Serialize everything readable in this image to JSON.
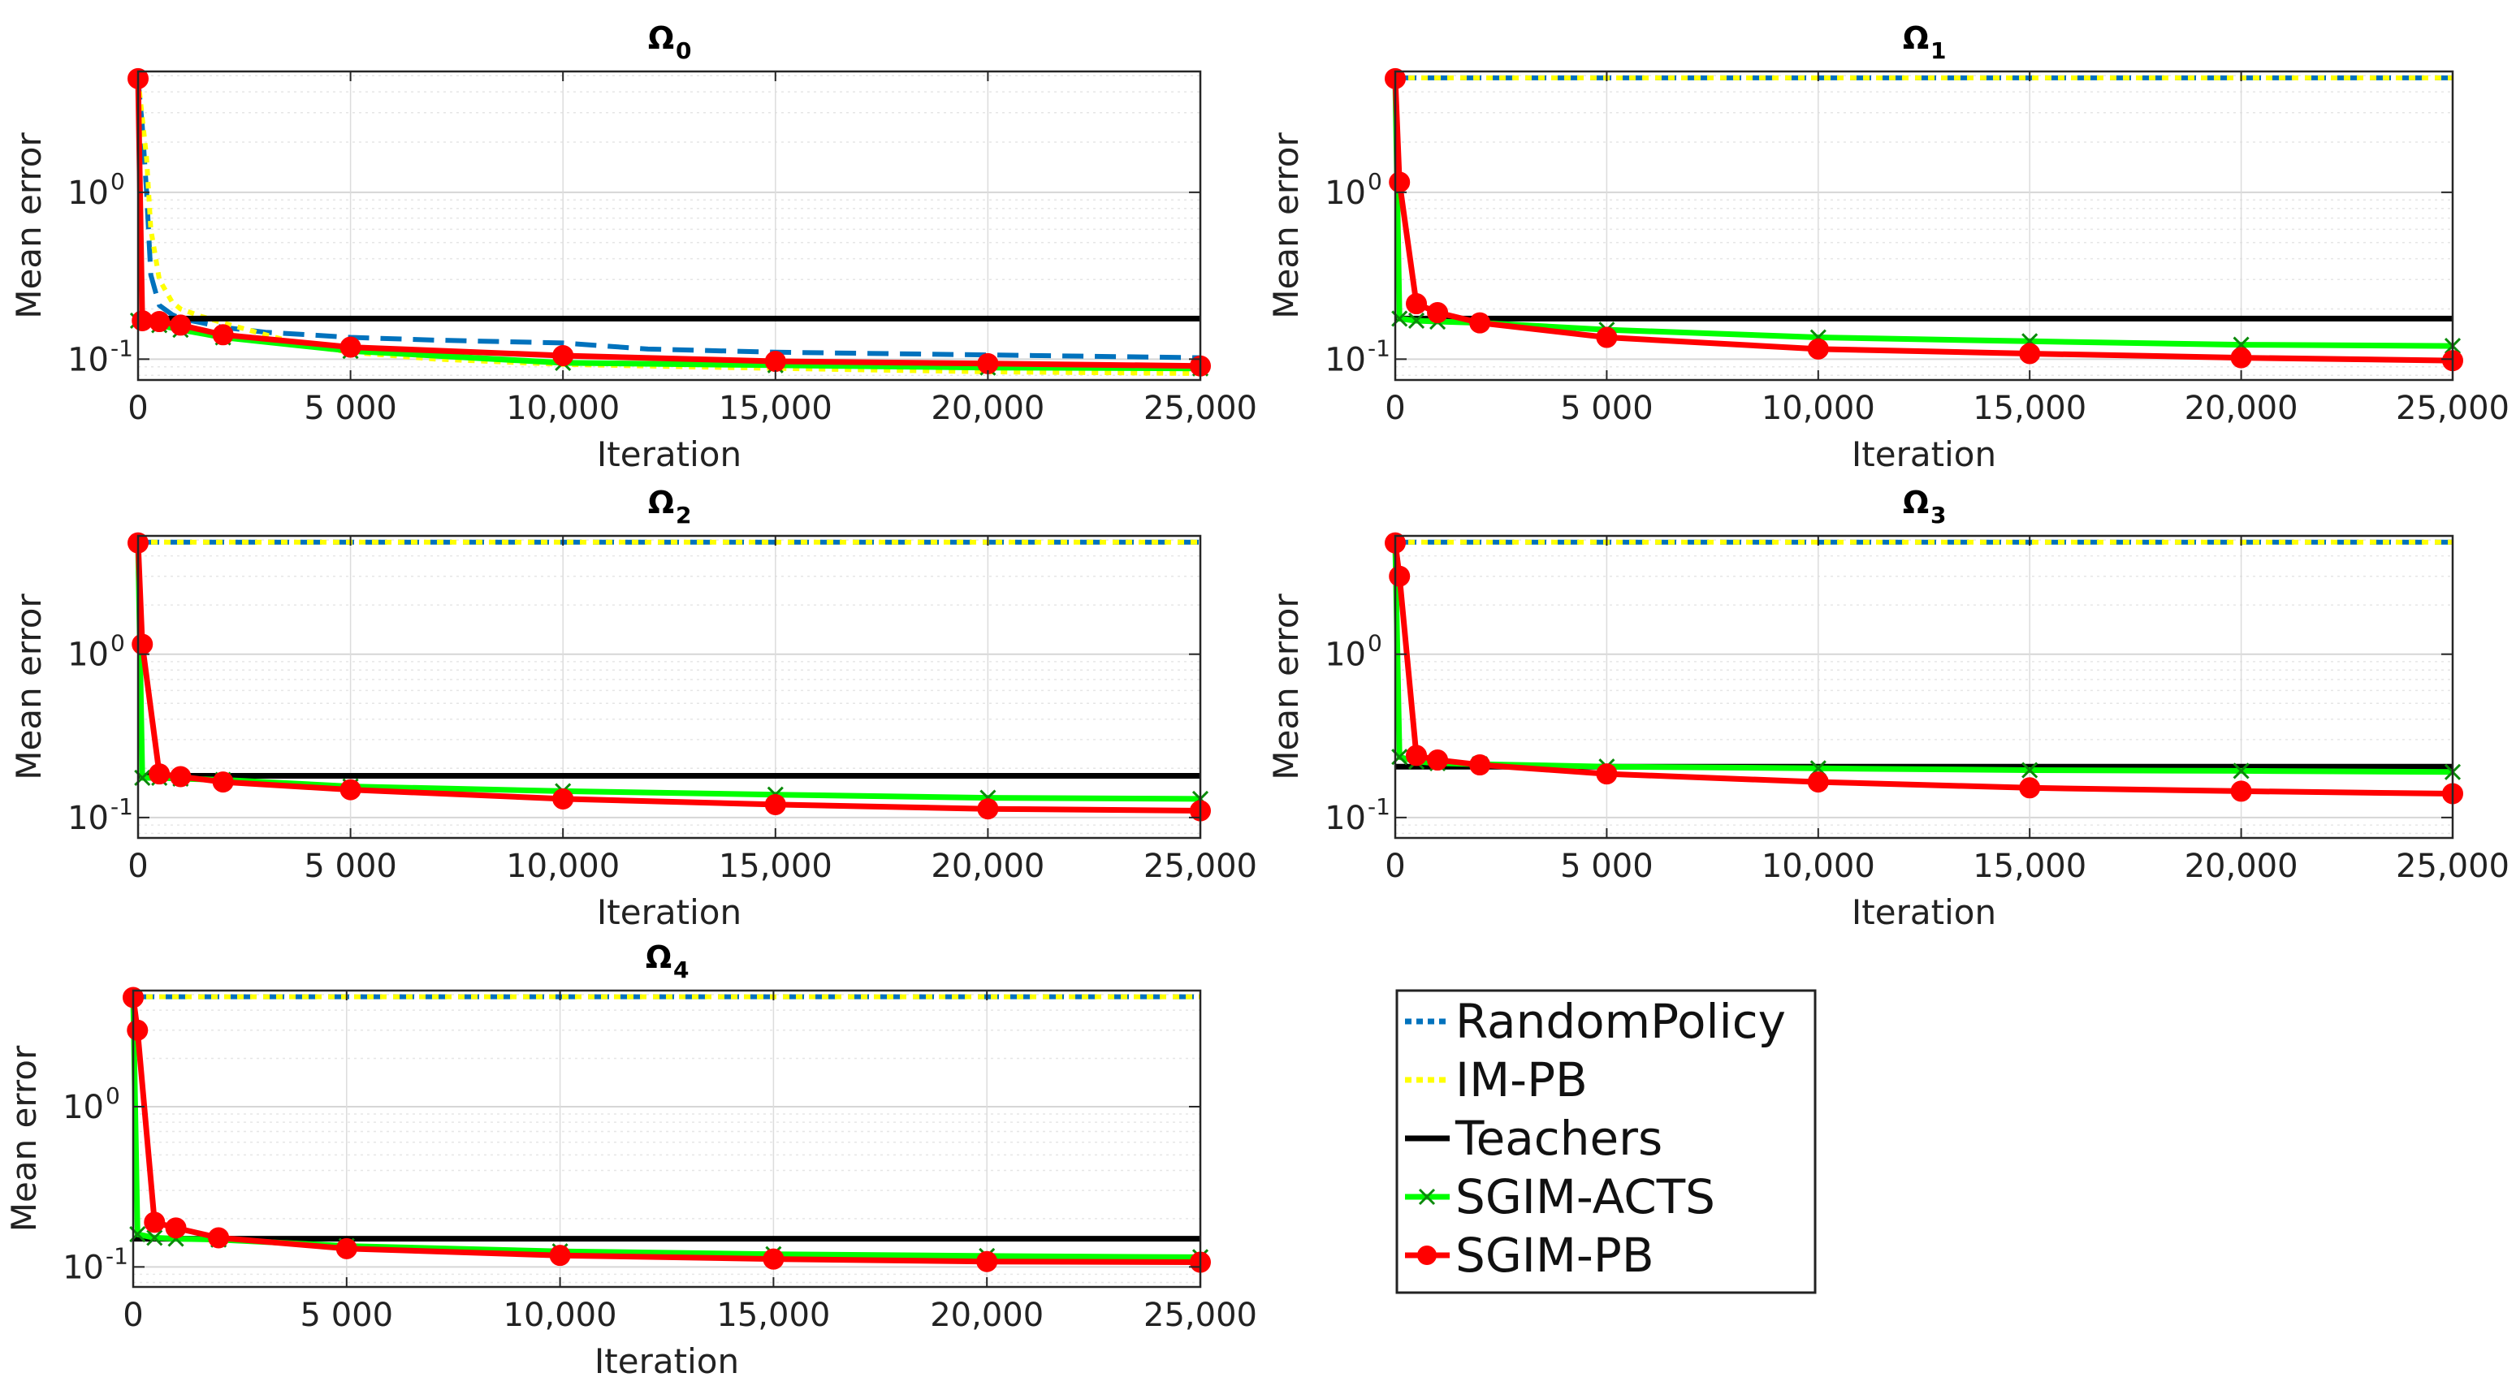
{
  "chart_data": [
    {
      "type": "line",
      "title": "Ω",
      "title_subscript": "0",
      "xlabel": "Iteration",
      "ylabel": "Mean error",
      "yscale": "log",
      "xlim": [
        0,
        25000
      ],
      "ylim": [
        0.075,
        5.3
      ],
      "grid": true,
      "xticks": [
        0,
        5000,
        10000,
        15000,
        20000,
        25000
      ],
      "xtick_labels": [
        "0",
        "5 000",
        "10,000",
        "15,000",
        "20,000",
        "25,000"
      ],
      "yticks": [
        0.1,
        1
      ],
      "series": [
        {
          "name": "RandomPolicy",
          "x": [
            0,
            100,
            200,
            300,
            500,
            800,
            1000,
            1500,
            2000,
            3000,
            4000,
            5000,
            7000,
            10000,
            12000,
            15000,
            20000,
            25000
          ],
          "y": [
            4.8,
            2.5,
            1.0,
            0.32,
            0.21,
            0.185,
            0.175,
            0.165,
            0.155,
            0.145,
            0.14,
            0.135,
            0.13,
            0.125,
            0.115,
            0.11,
            0.106,
            0.102
          ]
        },
        {
          "name": "IM-PB",
          "x": [
            0,
            100,
            200,
            300,
            500,
            800,
            1000,
            1500,
            2000,
            3000,
            4000,
            5000,
            7000,
            10000,
            15000,
            20000,
            25000
          ],
          "y": [
            4.8,
            2.8,
            1.6,
            0.6,
            0.3,
            0.22,
            0.2,
            0.18,
            0.165,
            0.14,
            0.12,
            0.11,
            0.1,
            0.093,
            0.088,
            0.084,
            0.082
          ]
        },
        {
          "name": "Teachers",
          "x": [
            0,
            25000
          ],
          "y": [
            0.175,
            0.175
          ]
        },
        {
          "name": "SGIM-ACTS",
          "x": [
            0,
            100,
            500,
            1000,
            2000,
            5000,
            10000,
            15000,
            20000,
            25000
          ],
          "y": [
            0.17,
            0.17,
            0.16,
            0.15,
            0.135,
            0.112,
            0.095,
            0.092,
            0.089,
            0.088
          ]
        },
        {
          "name": "SGIM-PB",
          "x": [
            0,
            100,
            500,
            1000,
            2000,
            5000,
            10000,
            15000,
            20000,
            25000
          ],
          "y": [
            4.8,
            0.17,
            0.168,
            0.16,
            0.14,
            0.118,
            0.105,
            0.097,
            0.094,
            0.091
          ]
        }
      ]
    },
    {
      "type": "line",
      "title": "Ω",
      "title_subscript": "1",
      "xlabel": "Iteration",
      "ylabel": "Mean error",
      "yscale": "log",
      "xlim": [
        0,
        25000
      ],
      "ylim": [
        0.075,
        5.3
      ],
      "grid": true,
      "xticks": [
        0,
        5000,
        10000,
        15000,
        20000,
        25000
      ],
      "xtick_labels": [
        "0",
        "5 000",
        "10,000",
        "15,000",
        "20,000",
        "25,000"
      ],
      "yticks": [
        0.1,
        1
      ],
      "series": [
        {
          "name": "RandomPolicy",
          "x": [
            0,
            25000
          ],
          "y": [
            4.85,
            4.85
          ]
        },
        {
          "name": "IM-PB",
          "x": [
            0,
            25000
          ],
          "y": [
            4.85,
            4.85
          ]
        },
        {
          "name": "Teachers",
          "x": [
            0,
            25000
          ],
          "y": [
            0.175,
            0.175
          ]
        },
        {
          "name": "SGIM-ACTS",
          "x": [
            0,
            100,
            500,
            1000,
            2000,
            5000,
            10000,
            15000,
            20000,
            25000
          ],
          "y": [
            4.8,
            0.175,
            0.17,
            0.168,
            0.165,
            0.15,
            0.135,
            0.128,
            0.122,
            0.12
          ]
        },
        {
          "name": "SGIM-PB",
          "x": [
            0,
            100,
            500,
            1000,
            2000,
            5000,
            10000,
            15000,
            20000,
            25000
          ],
          "y": [
            4.8,
            1.15,
            0.215,
            0.19,
            0.165,
            0.135,
            0.115,
            0.108,
            0.102,
            0.098
          ]
        }
      ]
    },
    {
      "type": "line",
      "title": "Ω",
      "title_subscript": "2",
      "xlabel": "Iteration",
      "ylabel": "Mean error",
      "yscale": "log",
      "xlim": [
        0,
        25000
      ],
      "ylim": [
        0.075,
        5.3
      ],
      "grid": true,
      "xticks": [
        0,
        5000,
        10000,
        15000,
        20000,
        25000
      ],
      "xtick_labels": [
        "0",
        "5 000",
        "10,000",
        "15,000",
        "20,000",
        "25,000"
      ],
      "yticks": [
        0.1,
        1
      ],
      "series": [
        {
          "name": "RandomPolicy",
          "x": [
            0,
            25000
          ],
          "y": [
            4.85,
            4.85
          ]
        },
        {
          "name": "IM-PB",
          "x": [
            0,
            25000
          ],
          "y": [
            4.85,
            4.85
          ]
        },
        {
          "name": "Teachers",
          "x": [
            0,
            25000
          ],
          "y": [
            0.18,
            0.18
          ]
        },
        {
          "name": "SGIM-ACTS",
          "x": [
            0,
            100,
            500,
            1000,
            2000,
            5000,
            10000,
            15000,
            20000,
            25000
          ],
          "y": [
            4.8,
            0.175,
            0.175,
            0.173,
            0.17,
            0.155,
            0.145,
            0.138,
            0.132,
            0.13
          ]
        },
        {
          "name": "SGIM-PB",
          "x": [
            0,
            100,
            500,
            1000,
            2000,
            5000,
            10000,
            15000,
            20000,
            25000
          ],
          "y": [
            4.8,
            1.15,
            0.185,
            0.178,
            0.165,
            0.148,
            0.13,
            0.12,
            0.113,
            0.11
          ]
        }
      ]
    },
    {
      "type": "line",
      "title": "Ω",
      "title_subscript": "3",
      "xlabel": "Iteration",
      "ylabel": "Mean error",
      "yscale": "log",
      "xlim": [
        0,
        25000
      ],
      "ylim": [
        0.075,
        5.3
      ],
      "grid": true,
      "xticks": [
        0,
        5000,
        10000,
        15000,
        20000,
        25000
      ],
      "xtick_labels": [
        "0",
        "5 000",
        "10,000",
        "15,000",
        "20,000",
        "25,000"
      ],
      "yticks": [
        0.1,
        1
      ],
      "series": [
        {
          "name": "RandomPolicy",
          "x": [
            0,
            25000
          ],
          "y": [
            4.85,
            4.85
          ]
        },
        {
          "name": "IM-PB",
          "x": [
            0,
            25000
          ],
          "y": [
            4.85,
            4.85
          ]
        },
        {
          "name": "Teachers",
          "x": [
            0,
            25000
          ],
          "y": [
            0.205,
            0.205
          ]
        },
        {
          "name": "SGIM-ACTS",
          "x": [
            0,
            100,
            500,
            1000,
            2000,
            5000,
            10000,
            15000,
            20000,
            25000
          ],
          "y": [
            4.8,
            0.235,
            0.22,
            0.215,
            0.212,
            0.205,
            0.2,
            0.195,
            0.193,
            0.19
          ]
        },
        {
          "name": "SGIM-PB",
          "x": [
            0,
            100,
            500,
            1000,
            2000,
            5000,
            10000,
            15000,
            20000,
            25000
          ],
          "y": [
            4.8,
            3.0,
            0.24,
            0.225,
            0.21,
            0.185,
            0.165,
            0.152,
            0.145,
            0.14
          ]
        }
      ]
    },
    {
      "type": "line",
      "title": "Ω",
      "title_subscript": "4",
      "xlabel": "Iteration",
      "ylabel": "Mean error",
      "yscale": "log",
      "xlim": [
        0,
        25000
      ],
      "ylim": [
        0.075,
        5.3
      ],
      "grid": true,
      "xticks": [
        0,
        5000,
        10000,
        15000,
        20000,
        25000
      ],
      "xtick_labels": [
        "0",
        "5 000",
        "10,000",
        "15,000",
        "20,000",
        "25,000"
      ],
      "yticks": [
        0.1,
        1
      ],
      "series": [
        {
          "name": "RandomPolicy",
          "x": [
            0,
            25000
          ],
          "y": [
            4.85,
            4.85
          ]
        },
        {
          "name": "IM-PB",
          "x": [
            0,
            25000
          ],
          "y": [
            4.85,
            4.85
          ]
        },
        {
          "name": "Teachers",
          "x": [
            0,
            25000
          ],
          "y": [
            0.15,
            0.15
          ]
        },
        {
          "name": "SGIM-ACTS",
          "x": [
            0,
            100,
            500,
            1000,
            2000,
            5000,
            10000,
            15000,
            20000,
            25000
          ],
          "y": [
            4.8,
            0.16,
            0.152,
            0.15,
            0.148,
            0.135,
            0.125,
            0.12,
            0.117,
            0.115
          ]
        },
        {
          "name": "SGIM-PB",
          "x": [
            0,
            100,
            500,
            1000,
            2000,
            5000,
            10000,
            15000,
            20000,
            25000
          ],
          "y": [
            4.8,
            3.0,
            0.19,
            0.175,
            0.152,
            0.13,
            0.118,
            0.112,
            0.108,
            0.107
          ]
        }
      ]
    }
  ],
  "legend": {
    "location": "bottom-right",
    "entries": [
      {
        "label": "RandomPolicy",
        "color": "#0072BD",
        "style": "solid",
        "marker": "none"
      },
      {
        "label": "IM-PB",
        "color": "#FFFF00",
        "style": "dotted",
        "marker": "none"
      },
      {
        "label": "Teachers",
        "color": "#000000",
        "style": "solid",
        "marker": "none"
      },
      {
        "label": "SGIM-ACTS",
        "color": "#00FF00",
        "style": "solid",
        "marker": "x"
      },
      {
        "label": "SGIM-PB",
        "color": "#FF0000",
        "style": "solid",
        "marker": "circle"
      }
    ]
  },
  "colors": {
    "RandomPolicy": "#0072BD",
    "IM-PB": "#FFFF00",
    "Teachers": "#000000",
    "SGIM-ACTS": "#00FF00",
    "SGIM-PB": "#FF0000"
  }
}
